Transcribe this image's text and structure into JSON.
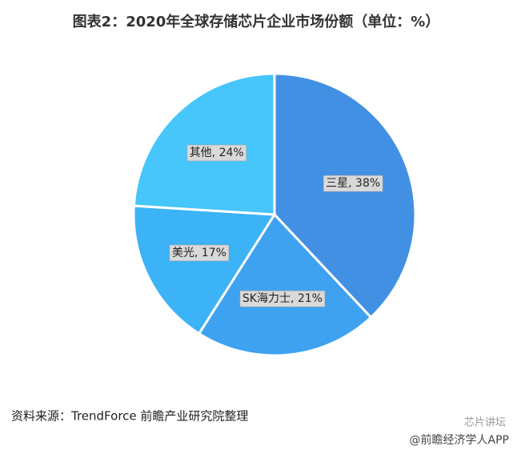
{
  "chart_data": {
    "type": "pie",
    "title": "图表2：2020年全球存储芯片企业市场份额（单位：%）",
    "categories": [
      "三星",
      "SK海力士",
      "美光",
      "其他"
    ],
    "values": [
      38,
      21,
      17,
      24
    ],
    "value_labels": [
      "三星, 38%",
      "SK海力士, 21%",
      "美光, 17%",
      "其他, 24%"
    ],
    "colors": [
      "#4190e4",
      "#3ea2f0",
      "#3bb3f6",
      "#46c6fa"
    ],
    "source": "资料来源：TrendForce 前瞻产业研究院整理"
  },
  "watermarks": [
    "芯片讲坛",
    "@前瞻经济学人APP"
  ]
}
